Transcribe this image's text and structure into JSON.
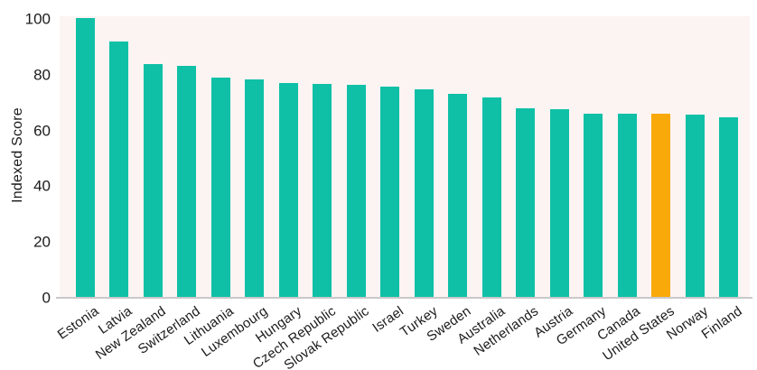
{
  "page": {
    "background": "#ffffff"
  },
  "chart_data": {
    "type": "bar",
    "title": "",
    "xlabel": "",
    "ylabel": "Indexed Score",
    "ylim": [
      0,
      101
    ],
    "yticks": [
      0,
      20,
      40,
      60,
      80,
      100
    ],
    "grid": false,
    "legend_position": "none",
    "categories": [
      "Estonia",
      "Latvia",
      "New Zealand",
      "Switzerland",
      "Lithuania",
      "Luxembourg",
      "Hungary",
      "Czech Republic",
      "Slovak Republic",
      "Israel",
      "Turkey",
      "Sweden",
      "Australia",
      "Netherlands",
      "Austria",
      "Germany",
      "Canada",
      "United States",
      "Norway",
      "Finland"
    ],
    "values": [
      100.5,
      92.0,
      84.0,
      83.3,
      79.1,
      78.3,
      77.1,
      76.7,
      76.3,
      75.9,
      74.7,
      73.0,
      71.9,
      68.0,
      67.5,
      66.2,
      66.1,
      65.9,
      65.7,
      64.7
    ],
    "highlight_category": "United States",
    "colors": {
      "bar": "#0FC0A7",
      "highlight_bar": "#FAA90B",
      "plot_background": "#FCF4F2",
      "axis_line": "#C9C9C9",
      "text": "#1B1B1B"
    }
  }
}
